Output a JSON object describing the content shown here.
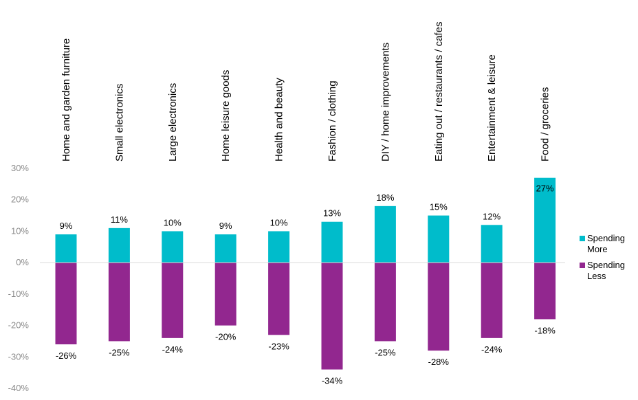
{
  "chart_data": {
    "type": "bar",
    "categories": [
      "Home and garden furniture",
      "Small electronics",
      "Large electronics",
      "Home leisure goods",
      "Health and beauty",
      "Fashion / clothing",
      "DIY / home improvements",
      "Eating out / restaurants / cafes",
      "Entertainment & leisure",
      "Food / groceries"
    ],
    "series": [
      {
        "name": "Spending More",
        "color": "#00BCCB",
        "values": [
          9,
          11,
          10,
          9,
          10,
          13,
          18,
          15,
          12,
          27
        ],
        "labels": [
          "9%",
          "11%",
          "10%",
          "9%",
          "10%",
          "13%",
          "18%",
          "15%",
          "12%",
          "27%"
        ]
      },
      {
        "name": "Spending Less",
        "color": "#92278F",
        "values": [
          -26,
          -25,
          -24,
          -20,
          -23,
          -34,
          -25,
          -28,
          -24,
          -18
        ],
        "labels": [
          "-26%",
          "-25%",
          "-24%",
          "-20%",
          "-23%",
          "-34%",
          "-25%",
          "-28%",
          "-24%",
          "-18%"
        ]
      }
    ],
    "legend_lines": [
      [
        "Spending",
        "More"
      ],
      [
        "Spending",
        "Less"
      ]
    ],
    "ylim": [
      -40,
      30
    ],
    "yticks": [
      30,
      20,
      10,
      0,
      -10,
      -20,
      -30,
      -40
    ],
    "ytick_labels": [
      "30%",
      "20%",
      "10%",
      "0%",
      "-10%",
      "-20%",
      "-30%",
      "-40%"
    ],
    "grid": false,
    "legend_position": "right",
    "zero_line_color": "#d9d9d9",
    "title": "",
    "xlabel": "",
    "ylabel": ""
  }
}
